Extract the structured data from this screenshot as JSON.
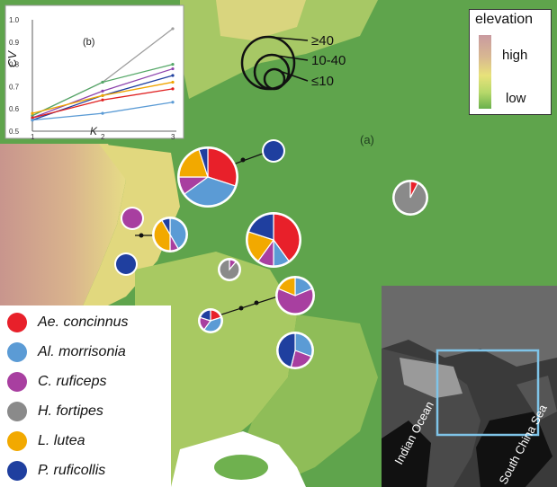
{
  "panel_labels": {
    "main": "(a)",
    "inset": "(b)"
  },
  "elevation_legend": {
    "title": "elevation",
    "high": "high",
    "low": "low"
  },
  "size_legend": [
    "≥40",
    "10-40",
    "≤10"
  ],
  "inset_chart": {
    "ylabel": "CV",
    "xlabel": "K",
    "yticks": [
      "1.0",
      "0.9",
      "0.8",
      "0.7",
      "0.6",
      "0.5"
    ],
    "xticks": [
      "1",
      "2",
      "3"
    ]
  },
  "chart_data": {
    "type": "line",
    "x": [
      1,
      2,
      3
    ],
    "xlabel": "K",
    "ylabel": "CV",
    "ylim": [
      0.5,
      1.0
    ],
    "series": [
      {
        "color": "#9e9e9e",
        "values": [
          0.57,
          0.72,
          0.96
        ]
      },
      {
        "color": "#55a868",
        "values": [
          0.57,
          0.72,
          0.8
        ]
      },
      {
        "color": "#8e44ad",
        "values": [
          0.56,
          0.68,
          0.78
        ]
      },
      {
        "color": "#1f3f9f",
        "values": [
          0.55,
          0.66,
          0.75
        ]
      },
      {
        "color": "#f0a500",
        "values": [
          0.58,
          0.66,
          0.72
        ]
      },
      {
        "color": "#e02020",
        "values": [
          0.56,
          0.64,
          0.69
        ]
      },
      {
        "color": "#5b9bd5",
        "values": [
          0.55,
          0.58,
          0.63
        ]
      }
    ]
  },
  "species": [
    {
      "name": "Ae. concinnus",
      "color": "#e8202a"
    },
    {
      "name": "Al. morrisonia",
      "color": "#5b9bd5"
    },
    {
      "name": "C. ruficeps",
      "color": "#a83fa0"
    },
    {
      "name": "H. fortipes",
      "color": "#8a8a8a"
    },
    {
      "name": "L. lutea",
      "color": "#f2a900"
    },
    {
      "name": "P. ruficollis",
      "color": "#1f3f9f"
    }
  ],
  "inset_map_labels": {
    "ocean": "Indian Ocean",
    "sea": "South China Sea"
  },
  "pies": [
    {
      "n": [
        30,
        35,
        10,
        0,
        20,
        5
      ]
    },
    {
      "n": [
        0,
        0,
        0,
        0,
        0,
        1
      ]
    },
    {
      "n": [
        0,
        0,
        1,
        0,
        0,
        0
      ]
    },
    {
      "n": [
        0,
        5,
        1,
        0,
        5,
        1
      ]
    },
    {
      "n": [
        0,
        0,
        0,
        0,
        0,
        1
      ]
    },
    {
      "n": [
        40,
        10,
        10,
        0,
        20,
        20
      ]
    },
    {
      "n": [
        0,
        0,
        1,
        8,
        0,
        0
      ]
    },
    {
      "n": [
        1,
        0,
        0,
        12,
        0,
        0
      ]
    },
    {
      "n": [
        0,
        3,
        10,
        0,
        3,
        0
      ]
    },
    {
      "n": [
        1,
        2,
        1,
        0,
        0,
        1
      ]
    },
    {
      "n": [
        0,
        4,
        3,
        0,
        0,
        6
      ]
    }
  ]
}
